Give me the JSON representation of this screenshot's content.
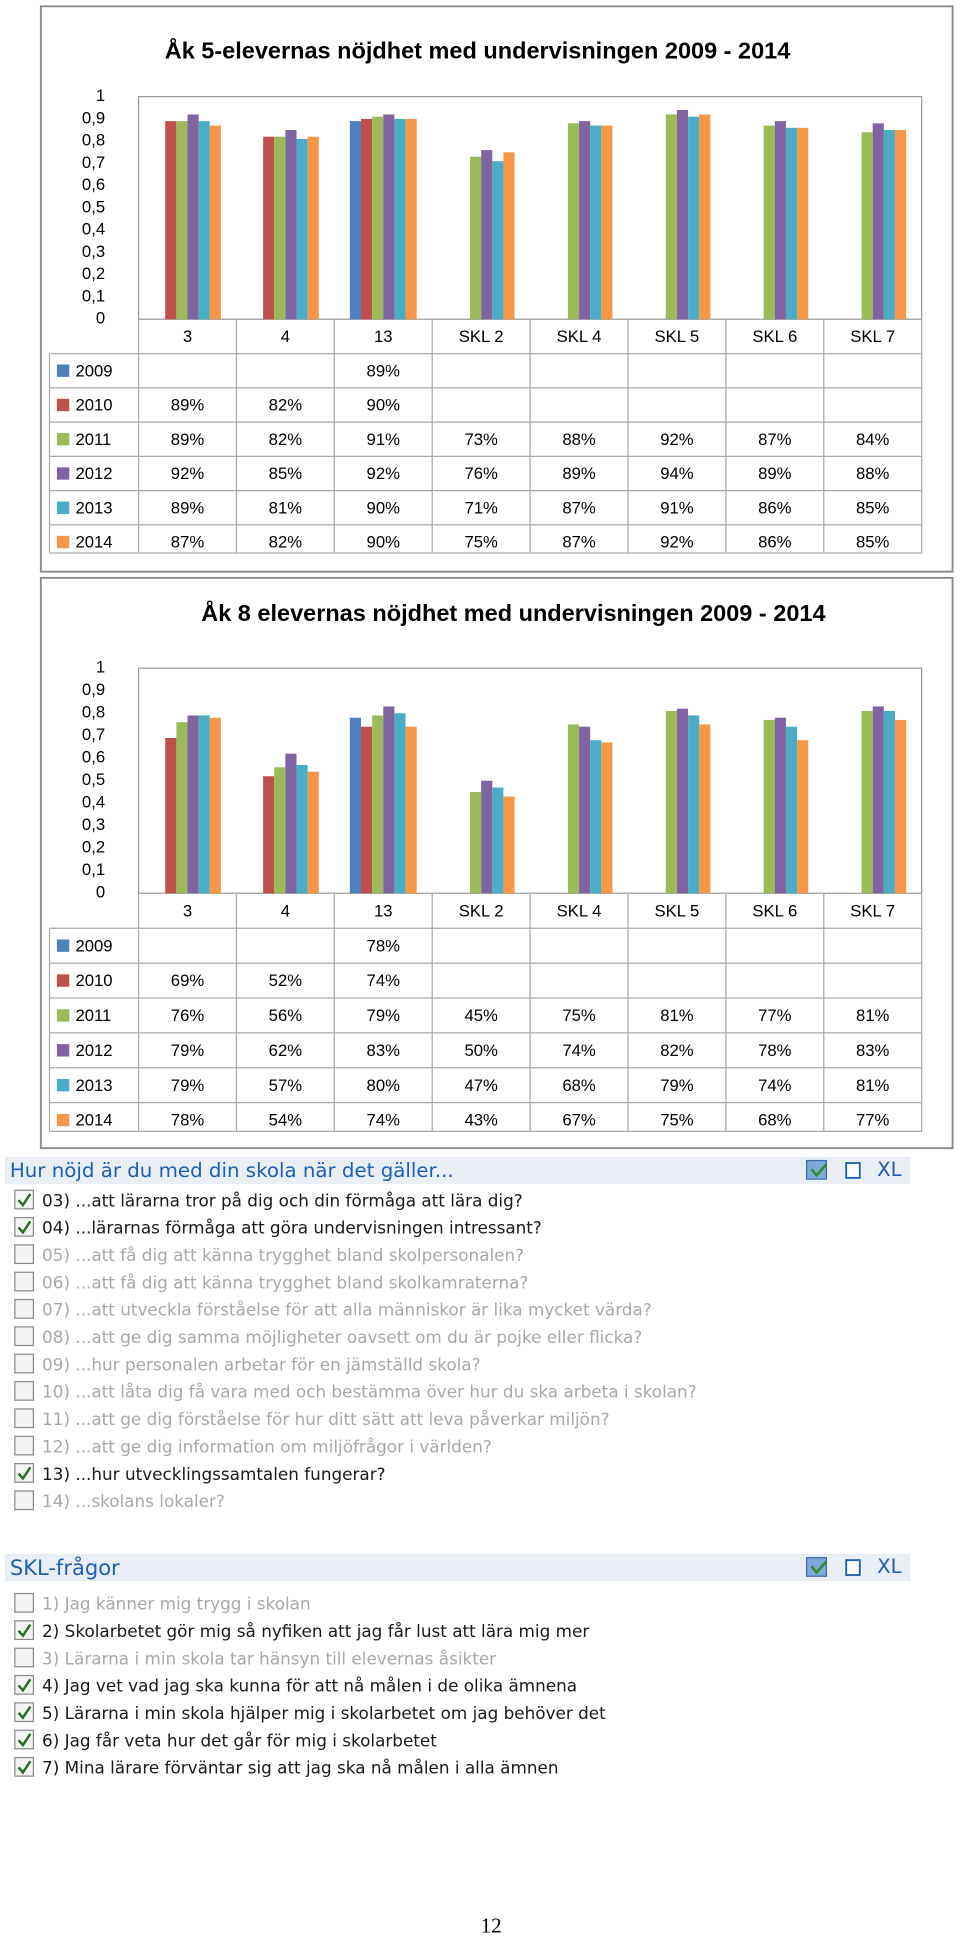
{
  "chart_data": [
    {
      "type": "bar",
      "title": "Åk 5-elevernas nöjdhet med undervisningen 2009 - 2014",
      "categories": [
        "3",
        "4",
        "13",
        "SKL 2",
        "SKL 4",
        "SKL 5",
        "SKL 6",
        "SKL 7"
      ],
      "series": [
        {
          "name": "2009",
          "color": "#4f81bd",
          "values": [
            null,
            null,
            0.89,
            null,
            null,
            null,
            null,
            null
          ],
          "value_labels": [
            null,
            null,
            "89%",
            null,
            null,
            null,
            null,
            null
          ]
        },
        {
          "name": "2010",
          "color": "#c0504d",
          "values": [
            0.89,
            0.82,
            0.9,
            null,
            null,
            null,
            null,
            null
          ],
          "value_labels": [
            "89%",
            "82%",
            "90%",
            null,
            null,
            null,
            null,
            null
          ]
        },
        {
          "name": "2011",
          "color": "#9bbb59",
          "values": [
            0.89,
            0.82,
            0.91,
            0.73,
            0.88,
            0.92,
            0.87,
            0.84
          ],
          "value_labels": [
            "89%",
            "82%",
            "91%",
            "73%",
            "88%",
            "92%",
            "87%",
            "84%"
          ]
        },
        {
          "name": "2012",
          "color": "#8064a2",
          "values": [
            0.92,
            0.85,
            0.92,
            0.76,
            0.89,
            0.94,
            0.89,
            0.88
          ],
          "value_labels": [
            "92%",
            "85%",
            "92%",
            "76%",
            "89%",
            "94%",
            "89%",
            "88%"
          ]
        },
        {
          "name": "2013",
          "color": "#4bacc6",
          "values": [
            0.89,
            0.81,
            0.9,
            0.71,
            0.87,
            0.91,
            0.86,
            0.85
          ],
          "value_labels": [
            "89%",
            "81%",
            "90%",
            "71%",
            "87%",
            "91%",
            "86%",
            "85%"
          ]
        },
        {
          "name": "2014",
          "color": "#f79646",
          "values": [
            0.87,
            0.82,
            0.9,
            0.75,
            0.87,
            0.92,
            0.86,
            0.85
          ],
          "value_labels": [
            "87%",
            "82%",
            "90%",
            "75%",
            "87%",
            "92%",
            "86%",
            "85%"
          ]
        }
      ],
      "ylim": [
        0,
        1
      ],
      "yticks": [
        0,
        {
          "value": 0.1,
          "label": "0,1"
        },
        {
          "value": 0.2,
          "label": "0,2"
        },
        {
          "value": 0.3,
          "label": "0,3"
        },
        {
          "value": 0.4,
          "label": "0,4"
        },
        {
          "value": 0.5,
          "label": "0,5"
        },
        {
          "value": 0.6,
          "label": "0,6"
        },
        {
          "value": 0.7,
          "label": "0,7"
        },
        {
          "value": 0.8,
          "label": "0,8"
        },
        {
          "value": 0.9,
          "label": "0,9"
        },
        1
      ],
      "grid": false
    },
    {
      "type": "bar",
      "title": "Åk 8 elevernas nöjdhet med undervisningen 2009 - 2014",
      "categories": [
        "3",
        "4",
        "13",
        "SKL 2",
        "SKL 4",
        "SKL 5",
        "SKL 6",
        "SKL 7"
      ],
      "series": [
        {
          "name": "2009",
          "color": "#4f81bd",
          "values": [
            null,
            null,
            0.78,
            null,
            null,
            null,
            null,
            null
          ],
          "value_labels": [
            null,
            null,
            "78%",
            null,
            null,
            null,
            null,
            null
          ]
        },
        {
          "name": "2010",
          "color": "#c0504d",
          "values": [
            0.69,
            0.52,
            0.74,
            null,
            null,
            null,
            null,
            null
          ],
          "value_labels": [
            "69%",
            "52%",
            "74%",
            null,
            null,
            null,
            null,
            null
          ]
        },
        {
          "name": "2011",
          "color": "#9bbb59",
          "values": [
            0.76,
            0.56,
            0.79,
            0.45,
            0.75,
            0.81,
            0.77,
            0.81
          ],
          "value_labels": [
            "76%",
            "56%",
            "79%",
            "45%",
            "75%",
            "81%",
            "77%",
            "81%"
          ]
        },
        {
          "name": "2012",
          "color": "#8064a2",
          "values": [
            0.79,
            0.62,
            0.83,
            0.5,
            0.74,
            0.82,
            0.78,
            0.83
          ],
          "value_labels": [
            "79%",
            "62%",
            "83%",
            "50%",
            "74%",
            "82%",
            "78%",
            "83%"
          ]
        },
        {
          "name": "2013",
          "color": "#4bacc6",
          "values": [
            0.79,
            0.57,
            0.8,
            0.47,
            0.68,
            0.79,
            0.74,
            0.81
          ],
          "value_labels": [
            "79%",
            "57%",
            "80%",
            "47%",
            "68%",
            "79%",
            "74%",
            "81%"
          ]
        },
        {
          "name": "2014",
          "color": "#f79646",
          "values": [
            0.78,
            0.54,
            0.74,
            0.43,
            0.67,
            0.75,
            0.68,
            0.77
          ],
          "value_labels": [
            "78%",
            "54%",
            "74%",
            "43%",
            "67%",
            "75%",
            "68%",
            "77%"
          ]
        }
      ],
      "ylim": [
        0,
        1
      ],
      "yticks": [
        0,
        {
          "value": 0.1,
          "label": "0,1"
        },
        {
          "value": 0.2,
          "label": "0,2"
        },
        {
          "value": 0.3,
          "label": "0,3"
        },
        {
          "value": 0.4,
          "label": "0,4"
        },
        {
          "value": 0.5,
          "label": "0,5"
        },
        {
          "value": 0.6,
          "label": "0,6"
        },
        {
          "value": 0.7,
          "label": "0,7"
        },
        {
          "value": 0.8,
          "label": "0,8"
        },
        {
          "value": 0.9,
          "label": "0,9"
        },
        1
      ],
      "grid": false
    }
  ],
  "panels": [
    {
      "title": "Hur nöjd är du med din skola när det gäller...",
      "export_label": "XL",
      "items": [
        {
          "label": "03) ...att lärarna tror på dig och din förmåga att lära dig?",
          "checked": true
        },
        {
          "label": "04) ...lärarnas förmåga att göra undervisningen intressant?",
          "checked": true
        },
        {
          "label": "05) ...att få dig att känna trygghet bland skolpersonalen?",
          "checked": false
        },
        {
          "label": "06) ...att få dig att känna trygghet bland skolkamraterna?",
          "checked": false
        },
        {
          "label": "07) ...att utveckla förståelse för att alla människor är lika mycket värda?",
          "checked": false
        },
        {
          "label": "08) ...att ge dig samma möjligheter oavsett om du är pojke eller flicka?",
          "checked": false
        },
        {
          "label": "09) ...hur personalen arbetar för en jämställd skola?",
          "checked": false
        },
        {
          "label": "10) ...att låta dig få vara med och bestämma över hur du ska arbeta i skolan?",
          "checked": false
        },
        {
          "label": "11) ...att ge dig förståelse för hur ditt sätt att leva påverkar miljön?",
          "checked": false
        },
        {
          "label": "12) ...att ge dig information om miljöfrågor i världen?",
          "checked": false
        },
        {
          "label": "13) ...hur utvecklingssamtalen fungerar?",
          "checked": true
        },
        {
          "label": "14) ...skolans lokaler?",
          "checked": false
        }
      ]
    },
    {
      "title": "SKL-frågor",
      "export_label": "XL",
      "items": [
        {
          "label": "1) Jag känner mig trygg i skolan",
          "checked": false
        },
        {
          "label": "2) Skolarbetet gör mig så nyfiken att jag får lust att lära mig mer",
          "checked": true
        },
        {
          "label": "3) Lärarna i min skola tar hänsyn till elevernas åsikter",
          "checked": false
        },
        {
          "label": "4) Jag vet vad jag ska kunna för att nå målen i de olika ämnena",
          "checked": true
        },
        {
          "label": "5) Lärarna i min skola hjälper mig i skolarbetet om jag behöver det",
          "checked": true
        },
        {
          "label": "6) Jag får veta hur det går för mig i skolarbetet",
          "checked": true
        },
        {
          "label": "7) Mina lärare förväntar sig att jag ska nå målen i alla ämnen",
          "checked": true
        }
      ]
    }
  ],
  "page_number": "12"
}
